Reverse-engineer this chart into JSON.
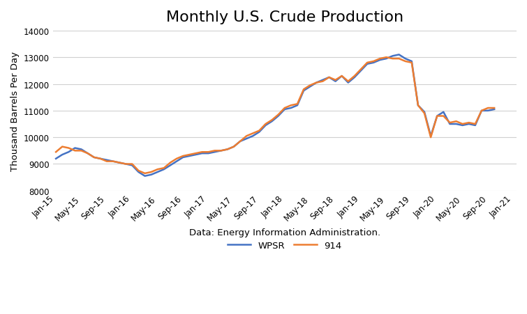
{
  "title": "Monthly U.S. Crude Production",
  "ylabel": "Thousand Barrels Per Day",
  "xlabel": "Data: Energy Information Administration.",
  "ylim": [
    8000,
    14000
  ],
  "yticks": [
    8000,
    9000,
    10000,
    11000,
    12000,
    13000,
    14000
  ],
  "wpsr_color": "#4472C4",
  "s914_color": "#ED7D31",
  "legend_labels": [
    "WPSR",
    "914"
  ],
  "x_tick_labels": [
    "Jan-15",
    "May-15",
    "Sep-15",
    "Jan-16",
    "May-16",
    "Sep-16",
    "Jan-17",
    "May-17",
    "Sep-17",
    "Jan-18",
    "May-18",
    "Sep-18",
    "Jan-19",
    "May-19",
    "Sep-19",
    "Jan-20",
    "May-20",
    "Sep-20",
    "Jan-21"
  ],
  "wpsr": [
    9200,
    9350,
    9450,
    9600,
    9550,
    9400,
    9250,
    9200,
    9150,
    9100,
    9050,
    9000,
    8950,
    8700,
    8550,
    8600,
    8700,
    8800,
    8950,
    9100,
    9250,
    9300,
    9350,
    9400,
    9400,
    9450,
    9500,
    9550,
    9650,
    9850,
    9950,
    10050,
    10200,
    10450,
    10600,
    10800,
    11050,
    11100,
    11200,
    11750,
    11900,
    12050,
    12150,
    12250,
    12100,
    12300,
    12050,
    12250,
    12500,
    12750,
    12800,
    12900,
    12950,
    13050,
    13100,
    12950,
    12850,
    11200,
    10950,
    10050,
    10800,
    10950,
    10500,
    10500,
    10450,
    10500,
    10450,
    11000,
    11000,
    11050
  ],
  "s914": [
    9450,
    9650,
    9600,
    9500,
    9500,
    9400,
    9250,
    9200,
    9100,
    9100,
    9050,
    9000,
    9000,
    8750,
    8650,
    8700,
    8800,
    8850,
    9050,
    9200,
    9300,
    9350,
    9400,
    9450,
    9450,
    9500,
    9500,
    9550,
    9650,
    9850,
    10050,
    10150,
    10250,
    10500,
    10650,
    10850,
    11100,
    11200,
    11250,
    11800,
    11950,
    12050,
    12100,
    12250,
    12150,
    12300,
    12100,
    12300,
    12550,
    12800,
    12850,
    12950,
    13000,
    12950,
    12950,
    12850,
    12800,
    11200,
    10900,
    10000,
    10800,
    10800,
    10550,
    10600,
    10500,
    10550,
    10500,
    11000,
    11100,
    11100
  ],
  "x_tick_positions": [
    0,
    4,
    8,
    12,
    16,
    20,
    24,
    28,
    32,
    36,
    40,
    44,
    48,
    52,
    56,
    60,
    64,
    68,
    72
  ]
}
